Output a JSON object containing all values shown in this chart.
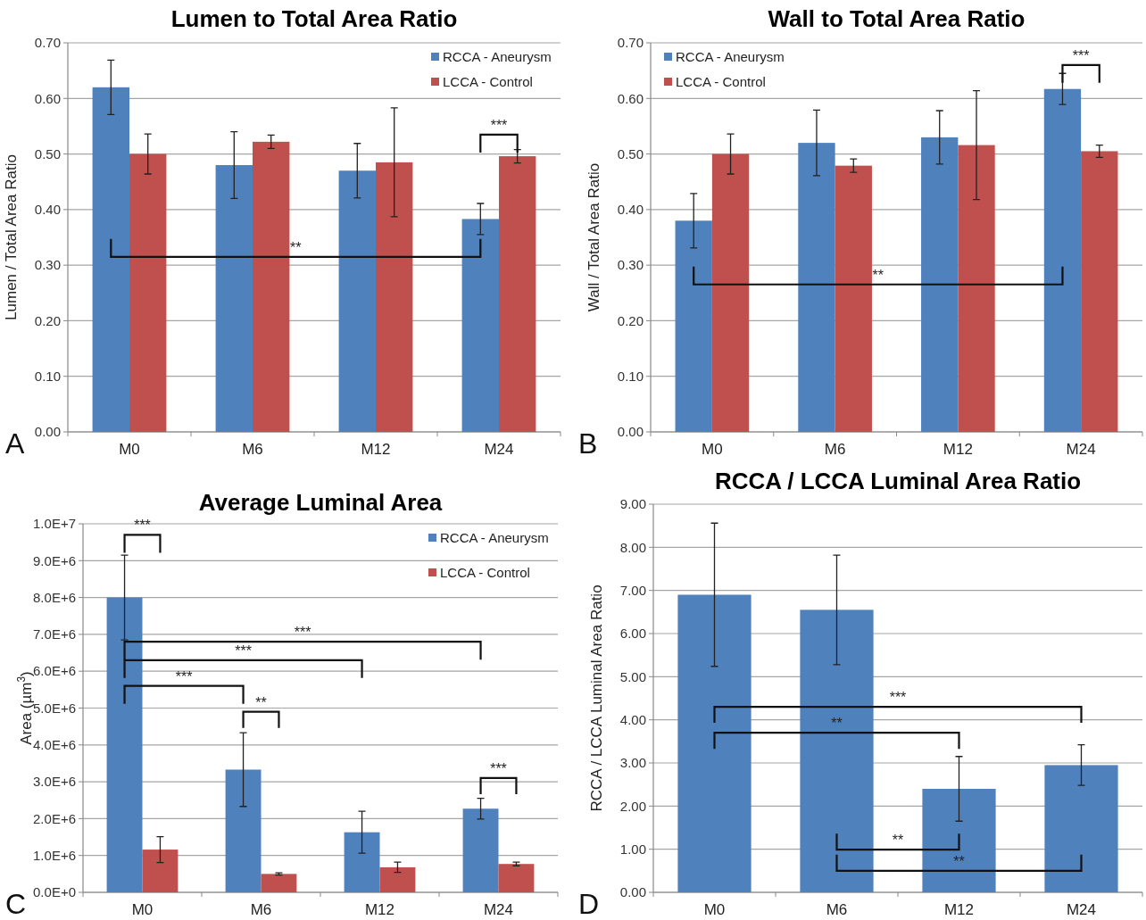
{
  "chart_data": [
    {
      "type": "bar",
      "title": "Lumen to Total Area Ratio",
      "ylabel": "Lumen / Total Area Ratio",
      "categories": [
        "M0",
        "M6",
        "M12",
        "M24"
      ],
      "series": [
        {
          "name": "RCCA - Aneurysm",
          "color": "#4f81bd",
          "values": [
            0.62,
            0.48,
            0.47,
            0.383
          ],
          "errors": [
            0.049,
            0.06,
            0.049,
            0.028
          ]
        },
        {
          "name": "LCCA - Control",
          "color": "#c0504d",
          "values": [
            0.5,
            0.522,
            0.485,
            0.496
          ],
          "errors": [
            0.036,
            0.012,
            0.098,
            0.012
          ]
        }
      ],
      "ylim": [
        0,
        0.7
      ],
      "yticks": [
        {
          "value": 0,
          "label": "0.00"
        },
        {
          "value": 0.1,
          "label": "0.10"
        },
        {
          "value": 0.2,
          "label": "0.20"
        },
        {
          "value": 0.3,
          "label": "0.30"
        },
        {
          "value": 0.4,
          "label": "0.40"
        },
        {
          "value": 0.5,
          "label": "0.50"
        },
        {
          "value": 0.6,
          "label": "0.60"
        },
        {
          "value": 0.7,
          "label": "0.70"
        }
      ],
      "grid": "y",
      "legend": "top right",
      "annotations": [
        "A",
        "**",
        "***"
      ]
    },
    {
      "type": "bar",
      "title": "Wall to Total Area Ratio",
      "ylabel": "Wall / Total Area Ratio",
      "categories": [
        "M0",
        "M6",
        "M12",
        "M24"
      ],
      "series": [
        {
          "name": "RCCA - Aneurysm",
          "color": "#4f81bd",
          "values": [
            0.38,
            0.52,
            0.53,
            0.617
          ],
          "errors": [
            0.049,
            0.059,
            0.048,
            0.028
          ]
        },
        {
          "name": "LCCA - Control",
          "color": "#c0504d",
          "values": [
            0.5,
            0.479,
            0.516,
            0.505
          ],
          "errors": [
            0.036,
            0.012,
            0.098,
            0.011
          ]
        }
      ],
      "ylim": [
        0,
        0.7
      ],
      "yticks": [
        {
          "value": 0,
          "label": "0.00"
        },
        {
          "value": 0.1,
          "label": "0.10"
        },
        {
          "value": 0.2,
          "label": "0.20"
        },
        {
          "value": 0.3,
          "label": "0.30"
        },
        {
          "value": 0.4,
          "label": "0.40"
        },
        {
          "value": 0.5,
          "label": "0.50"
        },
        {
          "value": 0.6,
          "label": "0.60"
        },
        {
          "value": 0.7,
          "label": "0.70"
        }
      ],
      "grid": "y",
      "legend": "top left",
      "annotations": [
        "B",
        "**",
        "***"
      ]
    },
    {
      "type": "bar",
      "title": "Average Luminal Area",
      "ylabel": "Area (µm$^{3}$)",
      "categories": [
        "M0",
        "M6",
        "M12",
        "M24"
      ],
      "series": [
        {
          "name": "RCCA - Aneurysm",
          "color": "#4f81bd",
          "values": [
            8000000,
            3330000,
            1630000,
            2270000
          ],
          "errors": [
            1150000,
            1000000,
            570000,
            280000
          ]
        },
        {
          "name": "LCCA - Control",
          "color": "#c0504d",
          "values": [
            1160000,
            500000,
            680000,
            770000
          ],
          "errors": [
            350000,
            30000,
            140000,
            50000
          ]
        }
      ],
      "ylim": [
        0,
        10000000
      ],
      "yticks": [
        {
          "value": 0,
          "label": "0.0E+0"
        },
        {
          "value": 1000000,
          "label": "1.0E+6"
        },
        {
          "value": 2000000,
          "label": "2.0E+6"
        },
        {
          "value": 3000000,
          "label": "3.0E+6"
        },
        {
          "value": 4000000,
          "label": "4.0E+6"
        },
        {
          "value": 5000000,
          "label": "5.0E+6"
        },
        {
          "value": 6000000,
          "label": "6.0E+6"
        },
        {
          "value": 7000000,
          "label": "7.0E+6"
        },
        {
          "value": 8000000,
          "label": "8.0E+6"
        },
        {
          "value": 9000000,
          "label": "9.0E+6"
        },
        {
          "value": 10000000,
          "label": "1.0E+7"
        }
      ],
      "grid": "y",
      "legend": "top right",
      "annotations": [
        "C",
        "***",
        "***",
        "***",
        "***",
        "**",
        "***"
      ]
    },
    {
      "type": "bar",
      "title": "RCCA / LCCA Luminal Area Ratio",
      "ylabel": "RCCA / LCCA Luminal Area Ratio",
      "categories": [
        "M0",
        "M6",
        "M12",
        "M24"
      ],
      "series": [
        {
          "color": "#4f81bd",
          "values": [
            6.9,
            6.55,
            2.4,
            2.95
          ],
          "errors": [
            1.66,
            1.27,
            0.75,
            0.47
          ]
        }
      ],
      "ylim": [
        0,
        9
      ],
      "yticks": [
        {
          "value": 0,
          "label": "0.00"
        },
        {
          "value": 1,
          "label": "1.00"
        },
        {
          "value": 2,
          "label": "2.00"
        },
        {
          "value": 3,
          "label": "3.00"
        },
        {
          "value": 4,
          "label": "4.00"
        },
        {
          "value": 5,
          "label": "5.00"
        },
        {
          "value": 6,
          "label": "6.00"
        },
        {
          "value": 7,
          "label": "7.00"
        },
        {
          "value": 8,
          "label": "8.00"
        },
        {
          "value": 9,
          "label": "9.00"
        }
      ],
      "grid": "y",
      "annotations": [
        "D",
        "***",
        "**",
        "**",
        "**"
      ]
    }
  ]
}
